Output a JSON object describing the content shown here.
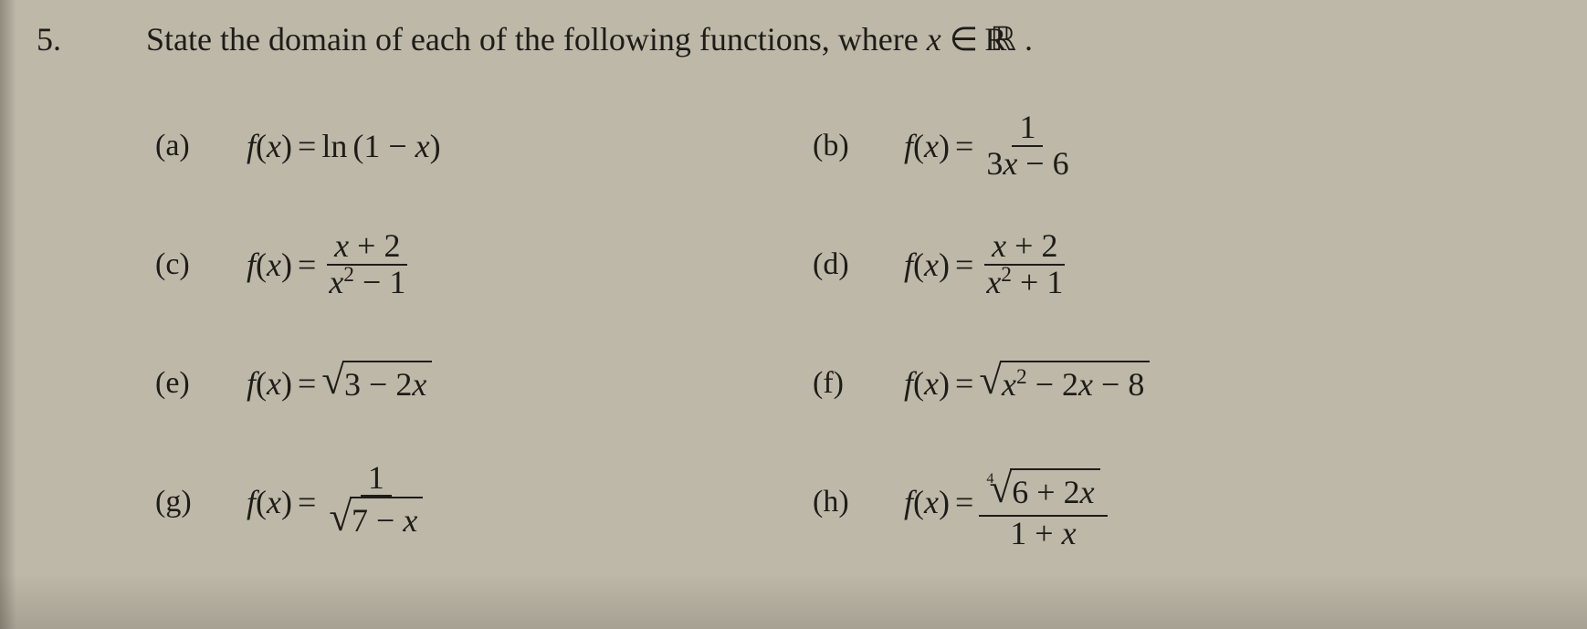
{
  "colors": {
    "page_background": "#bdb8a8",
    "text": "#1e1c18",
    "rule": "#1e1c18"
  },
  "typography": {
    "body_fontsize_pt": 27,
    "label_fontsize_pt": 26,
    "family": "Times New Roman (serif)"
  },
  "question": {
    "number": "5.",
    "prompt_pre": "State the domain of each of the following functions, where ",
    "prompt_var": "x",
    "prompt_in": " ∈ ",
    "prompt_set": "ℝ",
    "prompt_post": "."
  },
  "parts": {
    "a": {
      "label": "(a)",
      "lhs_f": "f",
      "lhs_var": "x",
      "eq": " = ",
      "ln": "ln",
      "open": "(",
      "inner_1": "1",
      "inner_minus": " − ",
      "inner_x": "x",
      "close": ")"
    },
    "b": {
      "label": "(b)",
      "lhs_f": "f",
      "lhs_var": "x",
      "eq": " = ",
      "num": "1",
      "den_3": "3",
      "den_x": "x",
      "den_minus": " − ",
      "den_6": "6"
    },
    "c": {
      "label": "(c)",
      "lhs_f": "f",
      "lhs_var": "x",
      "eq": " = ",
      "num_x": "x",
      "num_plus": " + ",
      "num_2": "2",
      "den_x": "x",
      "den_exp": "2",
      "den_minus": " − ",
      "den_1": "1"
    },
    "d": {
      "label": "(d)",
      "lhs_f": "f",
      "lhs_var": "x",
      "eq": " = ",
      "num_x": "x",
      "num_plus": " + ",
      "num_2": "2",
      "den_x": "x",
      "den_exp": "2",
      "den_plus": " + ",
      "den_1": "1"
    },
    "e": {
      "label": "(e)",
      "lhs_f": "f",
      "lhs_var": "x",
      "eq": " = ",
      "rad_3": "3",
      "rad_minus": " − ",
      "rad_2": "2",
      "rad_x": "x"
    },
    "f": {
      "label": "(f)",
      "lhs_f": "f",
      "lhs_var": "x",
      "eq": " = ",
      "rad_x": "x",
      "rad_exp": "2",
      "rad_minus1": " − ",
      "rad_2": "2",
      "rad_x2": "x",
      "rad_minus2": " − ",
      "rad_8": "8"
    },
    "g": {
      "label": "(g)",
      "lhs_f": "f",
      "lhs_var": "x",
      "eq": " = ",
      "num": "1",
      "rad_7": "7",
      "rad_minus": " − ",
      "rad_x": "x"
    },
    "h": {
      "label": "(h)",
      "lhs_f": "f",
      "lhs_var": "x",
      "eq": " = ",
      "root_index": "4",
      "rad_6": "6",
      "rad_plus": " + ",
      "rad_2": "2",
      "rad_x": "x",
      "den_1": "1",
      "den_plus": " + ",
      "den_x": "x"
    }
  }
}
